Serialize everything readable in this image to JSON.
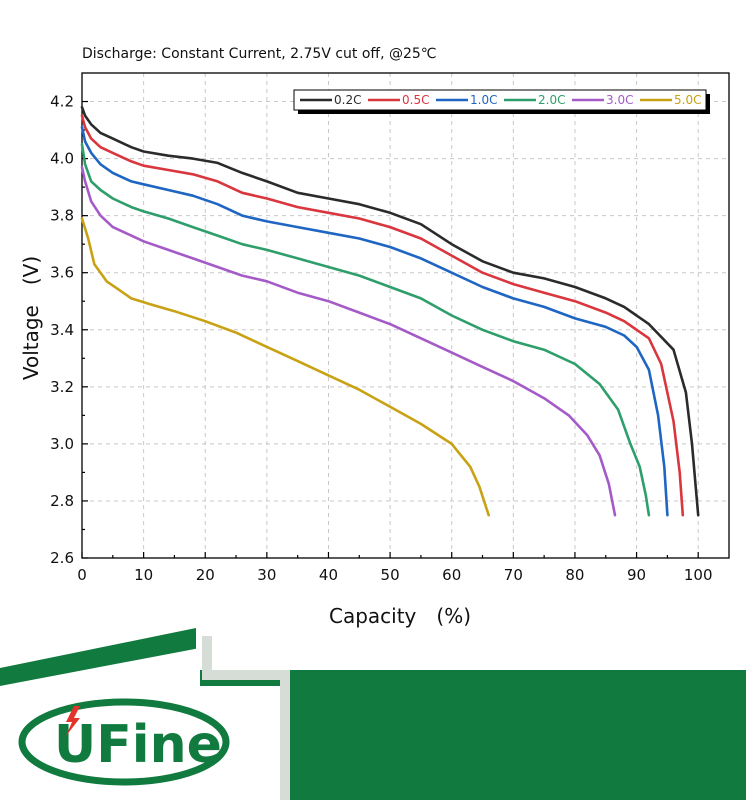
{
  "chart_data": {
    "type": "line",
    "title": "Discharge: Constant Current, 2.75V cut off, @25℃",
    "xlabel": "Capacity　(%)",
    "ylabel": "Voltage　(V)",
    "xlim": [
      0,
      105
    ],
    "ylim": [
      2.6,
      4.3
    ],
    "xticks": [
      0,
      10,
      20,
      30,
      40,
      50,
      60,
      70,
      80,
      90,
      100
    ],
    "yticks": [
      2.6,
      2.8,
      3.0,
      3.2,
      3.4,
      3.6,
      3.8,
      4.0,
      4.2
    ],
    "grid": true,
    "legend_position": "top-right",
    "series": [
      {
        "name": "0.2C",
        "color": "#2b2b2b",
        "x": [
          0,
          0.5,
          1.5,
          3,
          5,
          8,
          10,
          14,
          18,
          22,
          26,
          30,
          35,
          40,
          45,
          50,
          55,
          60,
          65,
          70,
          75,
          80,
          85,
          88,
          92,
          96,
          98,
          99,
          99.6,
          100
        ],
        "y": [
          4.18,
          4.15,
          4.12,
          4.09,
          4.07,
          4.04,
          4.025,
          4.01,
          4.0,
          3.985,
          3.95,
          3.92,
          3.88,
          3.86,
          3.84,
          3.81,
          3.77,
          3.7,
          3.64,
          3.6,
          3.58,
          3.55,
          3.51,
          3.48,
          3.42,
          3.33,
          3.18,
          3.0,
          2.85,
          2.75
        ]
      },
      {
        "name": "0.5C",
        "color": "#d9363e",
        "x": [
          0,
          0.5,
          1.5,
          3,
          5,
          8,
          10,
          14,
          18,
          22,
          26,
          30,
          35,
          40,
          45,
          50,
          55,
          60,
          65,
          70,
          75,
          80,
          85,
          88,
          92,
          94,
          96,
          97,
          97.5
        ],
        "y": [
          4.15,
          4.11,
          4.07,
          4.04,
          4.02,
          3.99,
          3.975,
          3.96,
          3.945,
          3.92,
          3.88,
          3.86,
          3.83,
          3.81,
          3.79,
          3.76,
          3.72,
          3.66,
          3.6,
          3.56,
          3.53,
          3.5,
          3.46,
          3.43,
          3.37,
          3.28,
          3.08,
          2.9,
          2.75
        ]
      },
      {
        "name": "1.0C",
        "color": "#1f66c2",
        "x": [
          0,
          0.5,
          1.5,
          3,
          5,
          8,
          10,
          14,
          18,
          22,
          26,
          30,
          35,
          40,
          45,
          50,
          55,
          60,
          65,
          70,
          75,
          80,
          85,
          88,
          90,
          92,
          93.5,
          94.5,
          95
        ],
        "y": [
          4.11,
          4.06,
          4.02,
          3.98,
          3.95,
          3.92,
          3.91,
          3.89,
          3.87,
          3.84,
          3.8,
          3.78,
          3.76,
          3.74,
          3.72,
          3.69,
          3.65,
          3.6,
          3.55,
          3.51,
          3.48,
          3.44,
          3.41,
          3.38,
          3.34,
          3.26,
          3.1,
          2.92,
          2.75
        ]
      },
      {
        "name": "2.0C",
        "color": "#2e9e6b",
        "x": [
          0,
          0.5,
          1.5,
          3,
          5,
          8,
          10,
          14,
          18,
          22,
          26,
          30,
          35,
          40,
          45,
          50,
          55,
          60,
          65,
          70,
          75,
          80,
          84,
          87,
          89,
          90.5,
          91.5,
          92
        ],
        "y": [
          4.05,
          3.98,
          3.92,
          3.89,
          3.86,
          3.83,
          3.815,
          3.79,
          3.76,
          3.73,
          3.7,
          3.68,
          3.65,
          3.62,
          3.59,
          3.55,
          3.51,
          3.45,
          3.4,
          3.36,
          3.33,
          3.28,
          3.21,
          3.12,
          3.0,
          2.92,
          2.82,
          2.75
        ]
      },
      {
        "name": "3.0C",
        "color": "#a55bc7",
        "x": [
          0,
          0.5,
          1.5,
          3,
          5,
          8,
          10,
          14,
          18,
          22,
          26,
          30,
          35,
          40,
          45,
          50,
          55,
          60,
          65,
          70,
          75,
          79,
          82,
          84,
          85.5,
          86.5
        ],
        "y": [
          3.97,
          3.92,
          3.85,
          3.8,
          3.76,
          3.73,
          3.71,
          3.68,
          3.65,
          3.62,
          3.59,
          3.57,
          3.53,
          3.5,
          3.46,
          3.42,
          3.37,
          3.32,
          3.27,
          3.22,
          3.16,
          3.1,
          3.03,
          2.96,
          2.86,
          2.75
        ]
      },
      {
        "name": "5.0C",
        "color": "#c8a214",
        "x": [
          0,
          1,
          2,
          4,
          6,
          8,
          11,
          15,
          20,
          25,
          30,
          35,
          40,
          45,
          50,
          55,
          60,
          63,
          64.5,
          66
        ],
        "y": [
          3.79,
          3.72,
          3.63,
          3.57,
          3.54,
          3.51,
          3.49,
          3.465,
          3.43,
          3.39,
          3.34,
          3.29,
          3.24,
          3.19,
          3.13,
          3.07,
          3.0,
          2.92,
          2.85,
          2.75
        ]
      }
    ]
  },
  "brand": {
    "name": "UFine",
    "color": "#117a3e"
  }
}
